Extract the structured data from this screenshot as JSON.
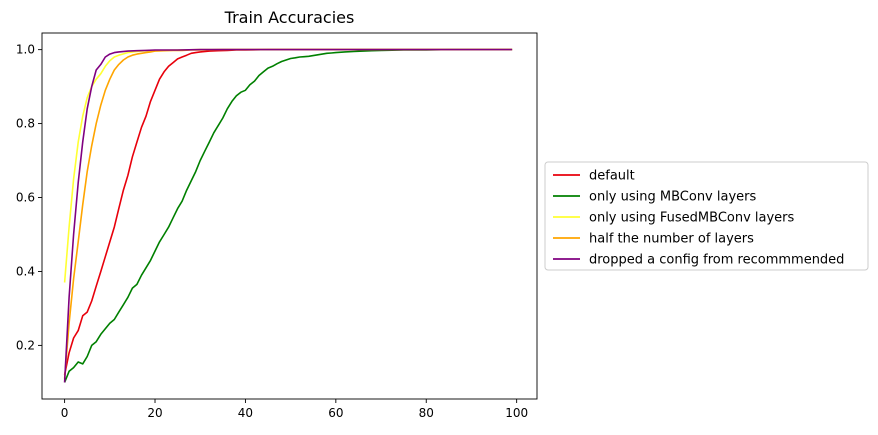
{
  "colors": {
    "default": "#e8000b",
    "only using MBConv layers": "#008000",
    "only using FusedMBConv layers": "#ffff33",
    "half the number of layers": "#ffa500",
    "dropped a config from recommmended": "#800080"
  },
  "chart_data": {
    "type": "line",
    "title": "Train Accuracies",
    "xlabel": "",
    "ylabel": "",
    "xlim": [
      -5,
      104.5
    ],
    "ylim": [
      0.055,
      1.045
    ],
    "xticks": [
      0,
      20,
      40,
      60,
      80,
      100
    ],
    "xtick_labels": [
      "0",
      "20",
      "40",
      "60",
      "80",
      "100"
    ],
    "yticks": [
      0.2,
      0.4,
      0.6,
      0.8,
      1.0
    ],
    "ytick_labels": [
      "0.2",
      "0.4",
      "0.6",
      "0.8",
      "1.0"
    ],
    "grid": false,
    "legend": "center-right outside plot",
    "series": [
      {
        "name": "default",
        "color": "#e8000b",
        "x": [
          0,
          1,
          2,
          3,
          4,
          5,
          6,
          7,
          8,
          9,
          10,
          11,
          12,
          13,
          14,
          15,
          16,
          17,
          18,
          19,
          20,
          21,
          22,
          23,
          24,
          25,
          26,
          27,
          28,
          29,
          30,
          32,
          34,
          36,
          38,
          40,
          45,
          50,
          55,
          60,
          70,
          80,
          90,
          99
        ],
        "y": [
          0.12,
          0.18,
          0.22,
          0.24,
          0.28,
          0.29,
          0.32,
          0.36,
          0.4,
          0.44,
          0.48,
          0.52,
          0.57,
          0.62,
          0.66,
          0.71,
          0.75,
          0.79,
          0.82,
          0.86,
          0.89,
          0.92,
          0.94,
          0.955,
          0.965,
          0.975,
          0.98,
          0.985,
          0.99,
          0.992,
          0.994,
          0.996,
          0.997,
          0.998,
          0.999,
          0.999,
          1.0,
          1.0,
          1.0,
          1.0,
          1.0,
          1.0,
          1.0,
          1.0
        ]
      },
      {
        "name": "only using MBConv layers",
        "color": "#008000",
        "x": [
          0,
          1,
          2,
          3,
          4,
          5,
          6,
          7,
          8,
          9,
          10,
          11,
          12,
          13,
          14,
          15,
          16,
          17,
          18,
          19,
          20,
          21,
          22,
          23,
          24,
          25,
          26,
          27,
          28,
          29,
          30,
          31,
          32,
          33,
          34,
          35,
          36,
          37,
          38,
          39,
          40,
          41,
          42,
          43,
          44,
          45,
          46,
          47,
          48,
          49,
          50,
          51,
          52,
          53,
          54,
          55,
          56,
          57,
          58,
          59,
          60,
          62,
          64,
          66,
          68,
          70,
          75,
          80,
          85,
          90,
          95,
          99
        ],
        "y": [
          0.1,
          0.13,
          0.14,
          0.155,
          0.15,
          0.17,
          0.2,
          0.21,
          0.23,
          0.245,
          0.26,
          0.27,
          0.29,
          0.31,
          0.33,
          0.355,
          0.365,
          0.39,
          0.41,
          0.43,
          0.455,
          0.48,
          0.5,
          0.52,
          0.545,
          0.57,
          0.59,
          0.62,
          0.645,
          0.67,
          0.7,
          0.725,
          0.75,
          0.775,
          0.795,
          0.815,
          0.84,
          0.86,
          0.875,
          0.885,
          0.89,
          0.905,
          0.915,
          0.93,
          0.94,
          0.95,
          0.955,
          0.962,
          0.968,
          0.972,
          0.976,
          0.978,
          0.98,
          0.981,
          0.982,
          0.984,
          0.986,
          0.988,
          0.99,
          0.991,
          0.992,
          0.994,
          0.995,
          0.996,
          0.997,
          0.998,
          0.999,
          0.999,
          1.0,
          1.0,
          1.0,
          1.0
        ]
      },
      {
        "name": "only using FusedMBConv layers",
        "color": "#ffff33",
        "x": [
          0,
          1,
          2,
          3,
          4,
          5,
          6,
          7,
          8,
          9,
          10,
          11,
          12,
          14,
          16,
          18,
          20,
          25,
          30,
          40,
          50,
          60,
          80,
          99
        ],
        "y": [
          0.37,
          0.52,
          0.65,
          0.75,
          0.82,
          0.87,
          0.9,
          0.92,
          0.935,
          0.955,
          0.97,
          0.98,
          0.985,
          0.992,
          0.995,
          0.997,
          0.998,
          0.999,
          1.0,
          1.0,
          1.0,
          1.0,
          1.0,
          1.0
        ]
      },
      {
        "name": "half the number of layers",
        "color": "#ffa500",
        "x": [
          0,
          1,
          2,
          3,
          4,
          5,
          6,
          7,
          8,
          9,
          10,
          11,
          12,
          13,
          14,
          15,
          16,
          17,
          18,
          19,
          20,
          22,
          24,
          26,
          28,
          30,
          35,
          40,
          50,
          60,
          80,
          99
        ],
        "y": [
          0.11,
          0.26,
          0.38,
          0.48,
          0.58,
          0.67,
          0.74,
          0.8,
          0.85,
          0.89,
          0.92,
          0.945,
          0.96,
          0.972,
          0.98,
          0.985,
          0.988,
          0.99,
          0.992,
          0.994,
          0.996,
          0.997,
          0.998,
          0.998,
          0.999,
          0.999,
          1.0,
          1.0,
          1.0,
          1.0,
          1.0,
          1.0
        ]
      },
      {
        "name": "dropped a config from recommmended",
        "color": "#800080",
        "x": [
          0,
          1,
          2,
          3,
          4,
          5,
          6,
          7,
          8,
          9,
          10,
          11,
          12,
          14,
          16,
          18,
          20,
          25,
          30,
          40,
          50,
          60,
          80,
          99
        ],
        "y": [
          0.1,
          0.33,
          0.5,
          0.64,
          0.75,
          0.84,
          0.9,
          0.945,
          0.96,
          0.98,
          0.988,
          0.992,
          0.994,
          0.996,
          0.997,
          0.998,
          0.999,
          0.999,
          1.0,
          1.0,
          1.0,
          1.0,
          1.0,
          1.0
        ]
      }
    ]
  }
}
